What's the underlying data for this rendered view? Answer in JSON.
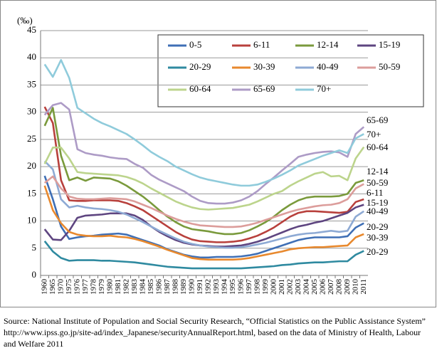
{
  "chart_data": {
    "type": "line",
    "y_label": "(‰)",
    "categories": [
      "1960",
      "1965",
      "1970",
      "1975",
      "1976",
      "1977",
      "1978",
      "1979",
      "1980",
      "1981",
      "1982",
      "1983",
      "1984",
      "1985",
      "1986",
      "1987",
      "1988",
      "1989",
      "1990",
      "1991",
      "1992",
      "1993",
      "1994",
      "1995",
      "1996",
      "1997",
      "1998",
      "1999",
      "2000",
      "2001",
      "2002",
      "2003",
      "2004",
      "2005",
      "2006",
      "2007",
      "2008",
      "2009",
      "2010",
      "2011"
    ],
    "ylim": [
      0,
      45
    ],
    "yticks": [
      0,
      5,
      10,
      15,
      20,
      25,
      30,
      35,
      40,
      45
    ],
    "grid": true,
    "legend": "top-right",
    "series": [
      {
        "name": "0-5",
        "color": "#3f6fb5",
        "values": [
          18.3,
          14,
          9,
          6.7,
          7,
          7.2,
          7.3,
          7.5,
          7.6,
          7.7,
          7.5,
          7.0,
          6.5,
          6.0,
          5.5,
          4.8,
          4.3,
          3.8,
          3.5,
          3.3,
          3.3,
          3.4,
          3.4,
          3.4,
          3.5,
          3.7,
          4.0,
          4.5,
          5.0,
          5.5,
          6.0,
          6.5,
          6.8,
          7.0,
          7.0,
          7.0,
          7.0,
          7.2,
          8.8,
          9.6
        ]
      },
      {
        "name": "6-11",
        "color": "#b8403c",
        "values": [
          31,
          28,
          17.5,
          13.8,
          13.7,
          13.7,
          13.8,
          13.8,
          13.8,
          13.7,
          13.3,
          12.7,
          12.0,
          11.0,
          10.0,
          9.0,
          8.0,
          7.2,
          6.6,
          6.3,
          6.2,
          6.1,
          6.1,
          6.2,
          6.4,
          6.8,
          7.3,
          8.0,
          8.8,
          9.8,
          10.8,
          11.5,
          11.8,
          11.8,
          11.7,
          11.6,
          11.5,
          11.7,
          13.5,
          14.0
        ]
      },
      {
        "name": "12-14",
        "color": "#7a9a3c",
        "values": [
          27.5,
          30.8,
          22,
          17.5,
          18,
          17.4,
          18,
          17.9,
          17.8,
          17.3,
          16.5,
          15.5,
          14.5,
          13.3,
          12.0,
          10.8,
          9.8,
          9.0,
          8.5,
          8.3,
          8.1,
          7.8,
          7.6,
          7.6,
          7.8,
          8.3,
          9.0,
          9.8,
          10.8,
          12.0,
          13.0,
          13.8,
          14.3,
          14.5,
          14.5,
          14.5,
          14.6,
          15.0,
          17.0,
          17.5
        ]
      },
      {
        "name": "15-19",
        "color": "#5e4580",
        "values": [
          8.5,
          6.6,
          6.5,
          8.2,
          10.6,
          11.0,
          11.1,
          11.2,
          11.4,
          11.4,
          11.4,
          11.0,
          10.2,
          9.0,
          8.0,
          7.2,
          6.5,
          6.0,
          5.7,
          5.5,
          5.4,
          5.3,
          5.3,
          5.4,
          5.5,
          5.8,
          6.2,
          6.7,
          7.3,
          7.9,
          8.5,
          9.0,
          9.3,
          9.7,
          10.0,
          10.5,
          11.0,
          11.5,
          12.5,
          13.0
        ]
      },
      {
        "name": "20-29",
        "color": "#2f8aa0",
        "values": [
          6.3,
          4.4,
          3.2,
          2.7,
          2.8,
          2.8,
          2.8,
          2.7,
          2.7,
          2.6,
          2.5,
          2.4,
          2.2,
          2.0,
          1.8,
          1.6,
          1.5,
          1.4,
          1.3,
          1.3,
          1.3,
          1.3,
          1.3,
          1.3,
          1.3,
          1.4,
          1.5,
          1.6,
          1.7,
          1.9,
          2.0,
          2.2,
          2.3,
          2.4,
          2.4,
          2.5,
          2.6,
          2.6,
          3.8,
          4.5
        ]
      },
      {
        "name": "30-39",
        "color": "#e8892e",
        "values": [
          16.5,
          12,
          9.6,
          8,
          7.5,
          7.3,
          7.2,
          7.2,
          7.3,
          7.1,
          7.0,
          6.7,
          6.3,
          5.8,
          5.3,
          4.7,
          4.2,
          3.7,
          3.2,
          3.0,
          2.9,
          2.9,
          2.9,
          2.9,
          3.0,
          3.2,
          3.5,
          3.8,
          4.1,
          4.4,
          4.8,
          5.0,
          5.1,
          5.2,
          5.2,
          5.3,
          5.4,
          5.5,
          7.0,
          7.6
        ]
      },
      {
        "name": "40-49",
        "color": "#8eaad4",
        "values": [
          21,
          19.5,
          14,
          12.5,
          12.8,
          12.5,
          12.3,
          12.2,
          12.0,
          11.7,
          11.2,
          10.5,
          9.8,
          9.0,
          8.2,
          7.5,
          6.8,
          6.2,
          5.8,
          5.5,
          5.3,
          5.2,
          5.1,
          5.1,
          5.2,
          5.4,
          5.7,
          6.0,
          6.4,
          6.8,
          7.2,
          7.5,
          7.7,
          7.8,
          8.0,
          8.2,
          8.0,
          8.2,
          10.8,
          11.8
        ]
      },
      {
        "name": "50-59",
        "color": "#dc9d9b",
        "values": [
          17,
          18.2,
          16,
          14.5,
          14.1,
          14.0,
          14.0,
          14.1,
          14.2,
          14.1,
          14.0,
          13.6,
          13.0,
          12.4,
          11.7,
          11.0,
          10.4,
          9.9,
          9.5,
          9.2,
          9.1,
          9.0,
          8.9,
          8.9,
          9.0,
          9.3,
          9.7,
          10.2,
          10.7,
          11.2,
          11.7,
          12.1,
          12.4,
          12.7,
          12.9,
          13.0,
          13.3,
          14.0,
          16.0,
          16.8
        ]
      },
      {
        "name": "60-64",
        "color": "#bcd48c",
        "values": [
          20.5,
          23.5,
          23.5,
          21.5,
          19,
          18.8,
          18.7,
          18.6,
          18.5,
          18.4,
          18.1,
          17.6,
          16.9,
          16.0,
          15.2,
          14.4,
          13.6,
          13.0,
          12.5,
          12.2,
          12.1,
          12.2,
          12.3,
          12.4,
          12.7,
          13.0,
          13.6,
          14.3,
          15.0,
          15.5,
          16.5,
          17.3,
          18.0,
          18.7,
          19.0,
          18.2,
          18.3,
          17.5,
          21.5,
          23.6
        ]
      },
      {
        "name": "65-69",
        "color": "#ad9bc6",
        "values": [
          29.5,
          31.3,
          31.7,
          30.5,
          23.2,
          22.5,
          22.2,
          22.0,
          21.7,
          21.5,
          21.4,
          20.5,
          19.8,
          18.5,
          17.6,
          16.9,
          16.2,
          15.5,
          14.5,
          13.7,
          13.3,
          13.2,
          13.2,
          13.4,
          13.8,
          14.5,
          15.5,
          16.8,
          18.0,
          19.3,
          20.5,
          21.8,
          22.2,
          22.5,
          22.7,
          22.8,
          22.6,
          21.8,
          26.0,
          27.3
        ]
      },
      {
        "name": "70+",
        "color": "#8fcbdb",
        "values": [
          38.8,
          36.5,
          39.6,
          36.3,
          30.8,
          29.8,
          28.8,
          28.0,
          27.4,
          26.7,
          26.0,
          25.0,
          23.9,
          22.7,
          21.8,
          21.0,
          20.0,
          19.3,
          18.6,
          18.0,
          17.6,
          17.3,
          17.0,
          16.7,
          16.5,
          16.5,
          16.7,
          17.2,
          17.8,
          18.5,
          19.3,
          20.2,
          20.8,
          21.4,
          22.0,
          22.5,
          23.0,
          22.5,
          25.2,
          26.0
        ]
      }
    ],
    "annotations": [
      "65-69",
      "70+",
      "60-64",
      "12-14",
      "50-59",
      "6-11",
      "15-19",
      "40-49",
      "20-29",
      "30-39",
      "20-29"
    ],
    "source": "Source: National Institute of Population and Social Security Research, “Official Statistics on the Public Assistance System” http://www.ipss.go.jp/site-ad/index_Japanese/securityAnnualReport.html, based on the data of Ministry of Health, Labour and Welfare 2011"
  }
}
